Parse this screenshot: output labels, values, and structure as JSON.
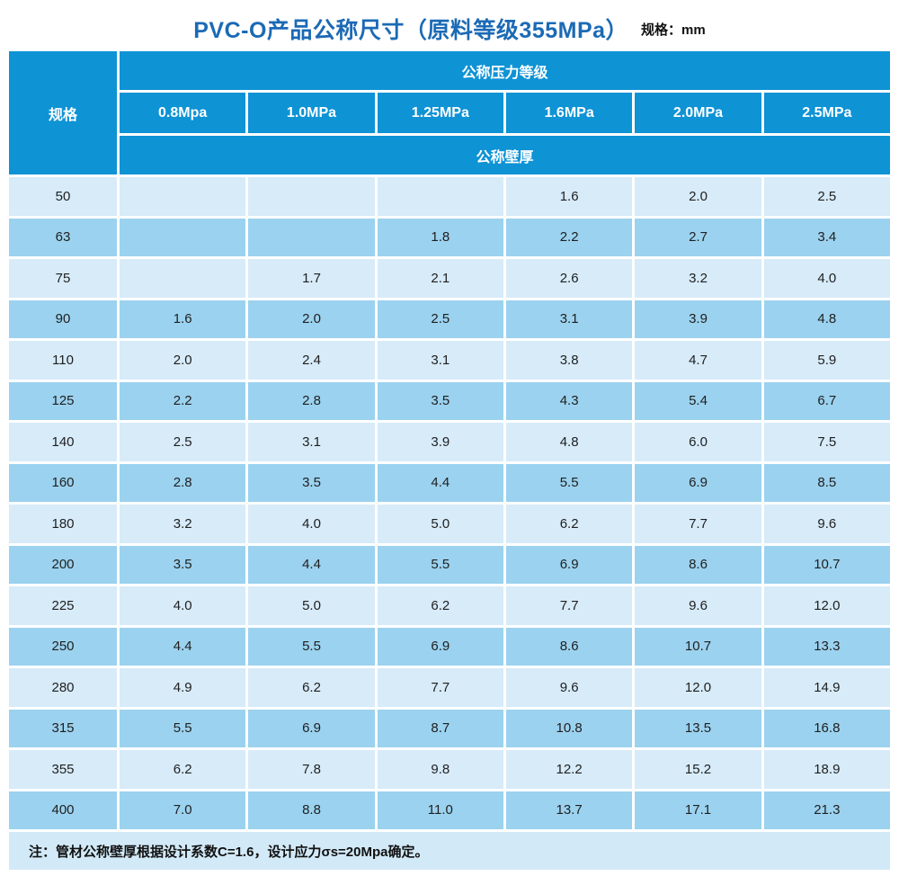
{
  "page": {
    "title": "PVC-O产品公称尺寸（原料等级355MPa）",
    "unit_label": "规格：mm"
  },
  "colors": {
    "header_bg": "#0e93d5",
    "row_light": "#d7ebf9",
    "row_dark": "#9bd2ef",
    "note_bg": "#d2e9f7",
    "title_color": "#1b6ab5",
    "text_color": "#1f1f1f",
    "gridline": "#ffffff"
  },
  "table": {
    "spec_header": "规格",
    "pressure_group_header": "公称压力等级",
    "thickness_header": "公称壁厚",
    "pressure_levels": [
      "0.8Mpa",
      "1.0MPa",
      "1.25MPa",
      "1.6MPa",
      "2.0MPa",
      "2.5MPa"
    ],
    "rows": [
      {
        "spec": "50",
        "values": [
          "",
          "",
          "",
          "1.6",
          "2.0",
          "2.5"
        ]
      },
      {
        "spec": "63",
        "values": [
          "",
          "",
          "1.8",
          "2.2",
          "2.7",
          "3.4"
        ]
      },
      {
        "spec": "75",
        "values": [
          "",
          "1.7",
          "2.1",
          "2.6",
          "3.2",
          "4.0"
        ]
      },
      {
        "spec": "90",
        "values": [
          "1.6",
          "2.0",
          "2.5",
          "3.1",
          "3.9",
          "4.8"
        ]
      },
      {
        "spec": "110",
        "values": [
          "2.0",
          "2.4",
          "3.1",
          "3.8",
          "4.7",
          "5.9"
        ]
      },
      {
        "spec": "125",
        "values": [
          "2.2",
          "2.8",
          "3.5",
          "4.3",
          "5.4",
          "6.7"
        ]
      },
      {
        "spec": "140",
        "values": [
          "2.5",
          "3.1",
          "3.9",
          "4.8",
          "6.0",
          "7.5"
        ]
      },
      {
        "spec": "160",
        "values": [
          "2.8",
          "3.5",
          "4.4",
          "5.5",
          "6.9",
          "8.5"
        ]
      },
      {
        "spec": "180",
        "values": [
          "3.2",
          "4.0",
          "5.0",
          "6.2",
          "7.7",
          "9.6"
        ]
      },
      {
        "spec": "200",
        "values": [
          "3.5",
          "4.4",
          "5.5",
          "6.9",
          "8.6",
          "10.7"
        ]
      },
      {
        "spec": "225",
        "values": [
          "4.0",
          "5.0",
          "6.2",
          "7.7",
          "9.6",
          "12.0"
        ]
      },
      {
        "spec": "250",
        "values": [
          "4.4",
          "5.5",
          "6.9",
          "8.6",
          "10.7",
          "13.3"
        ]
      },
      {
        "spec": "280",
        "values": [
          "4.9",
          "6.2",
          "7.7",
          "9.6",
          "12.0",
          "14.9"
        ]
      },
      {
        "spec": "315",
        "values": [
          "5.5",
          "6.9",
          "8.7",
          "10.8",
          "13.5",
          "16.8"
        ]
      },
      {
        "spec": "355",
        "values": [
          "6.2",
          "7.8",
          "9.8",
          "12.2",
          "15.2",
          "18.9"
        ]
      },
      {
        "spec": "400",
        "values": [
          "7.0",
          "8.8",
          "11.0",
          "13.7",
          "17.1",
          "21.3"
        ]
      }
    ],
    "note": "注：管材公称壁厚根据设计系数C=1.6，设计应力σs=20Mpa确定。"
  }
}
